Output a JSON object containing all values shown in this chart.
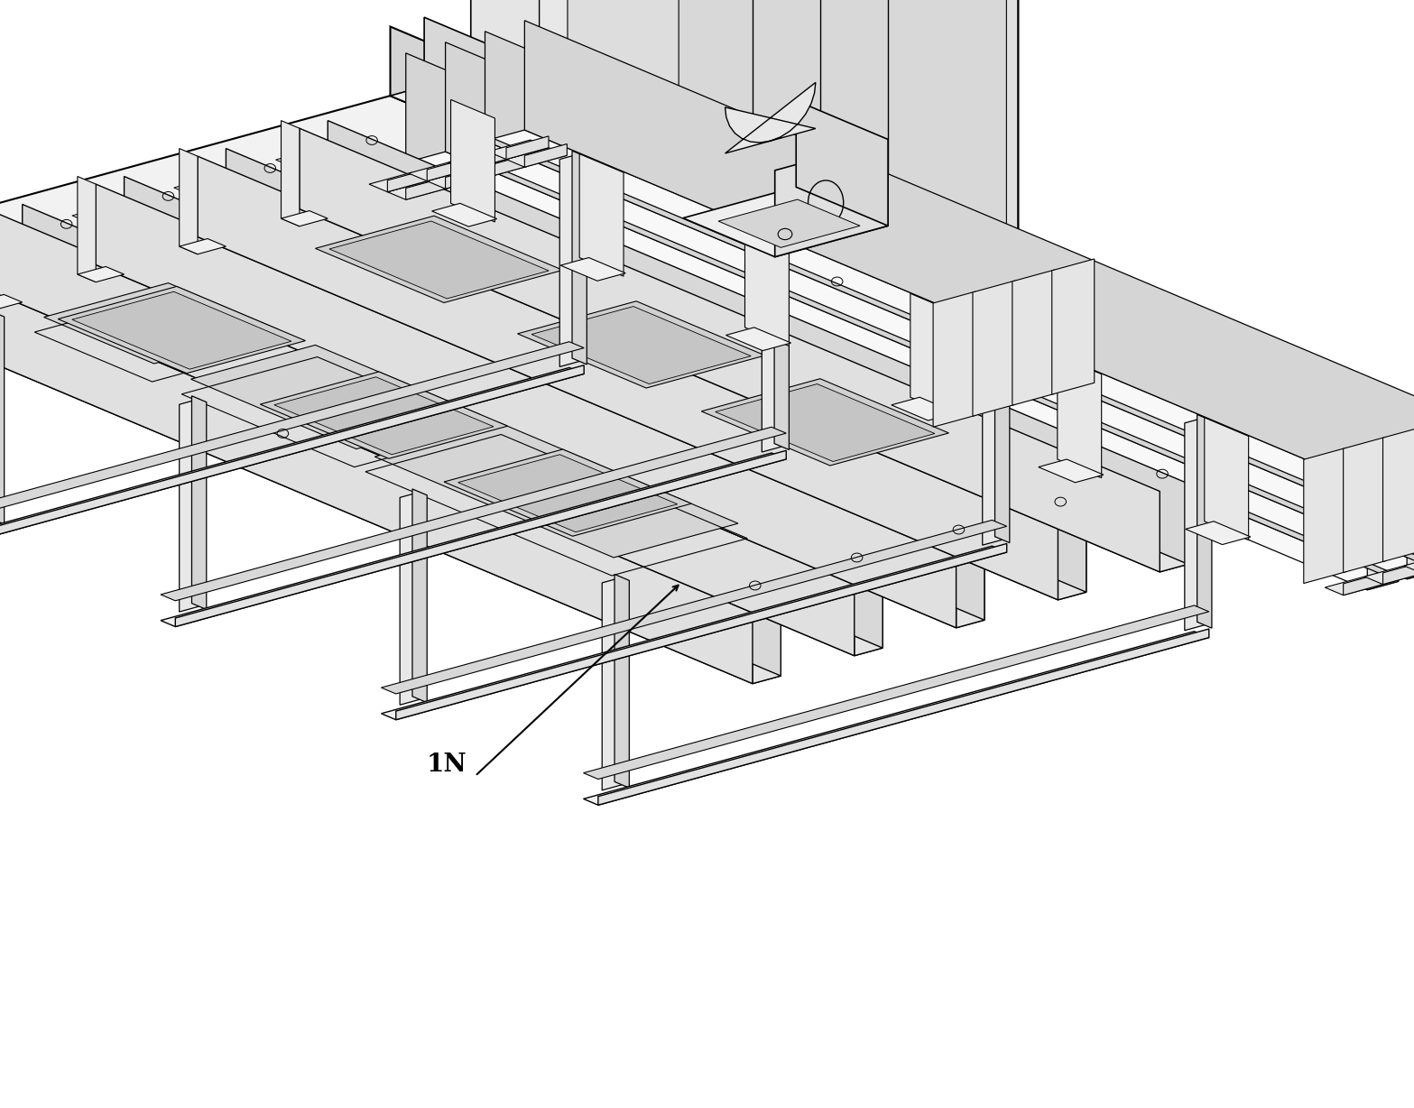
{
  "bg_color": "#ffffff",
  "line_color": "#000000",
  "label_text": "1N",
  "fig_width": 15.67,
  "fig_height": 12.28,
  "dpi": 100,
  "iso_ox": 0.48,
  "iso_oy": 0.56,
  "iso_sx": 0.038,
  "iso_sy": 0.018,
  "iso_sz": 0.052,
  "face_top": "#f2f2f2",
  "face_left": "#e2e2e2",
  "face_right": "#d5d5d5",
  "face_dark": "#c8c8c8",
  "face_slot": "#bebebe"
}
